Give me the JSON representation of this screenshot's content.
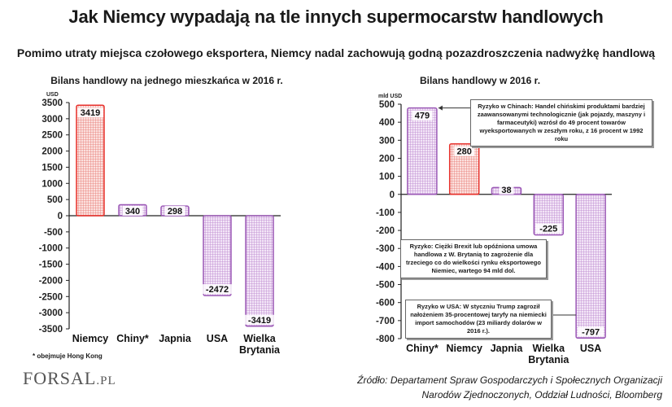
{
  "title": "Jak Niemcy wypadają na tle innych supermocarstw handlowych",
  "subtitle": "Pomimo utraty miejsca czołowego eksportera, Niemcy nadal zachowują godną pozazdroszczenia nadwyżkę handlową",
  "footnote": "* obejmuje Hong Kong",
  "logo": {
    "main": "FORSAL",
    "suffix": ".PL"
  },
  "source_line1": "Źródło: Departament Spraw Gospodarczych i Społecznych Organizacji",
  "source_line2": "Narodów Zjednoczonych, Oddział Ludności, Bloomberg",
  "colors": {
    "red": "#e8322c",
    "purple": "#9b59b6",
    "axis": "#222222"
  },
  "chart_data": [
    {
      "type": "bar",
      "title": "Bilans handlowy na jednego mieszkańca w 2016 r.",
      "ylabel": "USD",
      "ylim": [
        -3500,
        3500
      ],
      "yticks": [
        3500,
        3000,
        2500,
        2000,
        1500,
        1000,
        500,
        0,
        -500,
        -1000,
        -1500,
        -2000,
        -2500,
        -3000,
        -3500
      ],
      "categories": [
        "Niemcy",
        "Chiny*",
        "Japnia",
        "USA",
        "Wielka Brytania"
      ],
      "category_lines": [
        [
          "Niemcy"
        ],
        [
          "Chiny*"
        ],
        [
          "Japnia"
        ],
        [
          "USA"
        ],
        [
          "Wielka",
          "Brytania"
        ]
      ],
      "values": [
        3419,
        340,
        298,
        -2472,
        -3419
      ],
      "value_labels": [
        "3419",
        "340",
        "298",
        "-2472",
        "-3419"
      ],
      "highlight": [
        true,
        false,
        false,
        false,
        false
      ]
    },
    {
      "type": "bar",
      "title": "Bilans handlowy w 2016 r.",
      "ylabel": "mld USD",
      "ylim": [
        -800,
        500
      ],
      "yticks": [
        500,
        400,
        300,
        200,
        100,
        0,
        -100,
        -200,
        -300,
        -400,
        -500,
        -600,
        -700,
        -800
      ],
      "categories": [
        "Chiny*",
        "Niemcy",
        "Japnia",
        "Wielka Brytania",
        "USA"
      ],
      "category_lines": [
        [
          "Chiny*"
        ],
        [
          "Niemcy"
        ],
        [
          "Japnia"
        ],
        [
          "Wielka",
          "Brytania"
        ],
        [
          "USA"
        ]
      ],
      "values": [
        479,
        280,
        38,
        -225,
        -797
      ],
      "value_labels": [
        "479",
        "280",
        "38",
        "-225",
        "-797"
      ],
      "highlight": [
        false,
        true,
        false,
        false,
        false
      ],
      "annotations": [
        "Ryzyko w Chinach: Handel chińskimi produktami bardziej zaawansowanymi technologicznie (jak pojazdy, maszyny i farmaceutyki) wzrósł do 49 procent towarów wyeksportowanych w zeszłym roku, z 16 procent w 1992 roku",
        "Ryzyko: Ciężki Brexit lub opóźniona umowa handlowa z W. Brytanią to zagrożenie dla trzeciego co do wielkości rynku eksportowego Niemiec, wartego 94 mld dol.",
        "Ryzyko w USA: W styczniu Trump zagroził nałożeniem 35-procentowej taryfy na niemiecki import samochodów (23 miliardy dolarów w 2016 r.)."
      ]
    }
  ]
}
